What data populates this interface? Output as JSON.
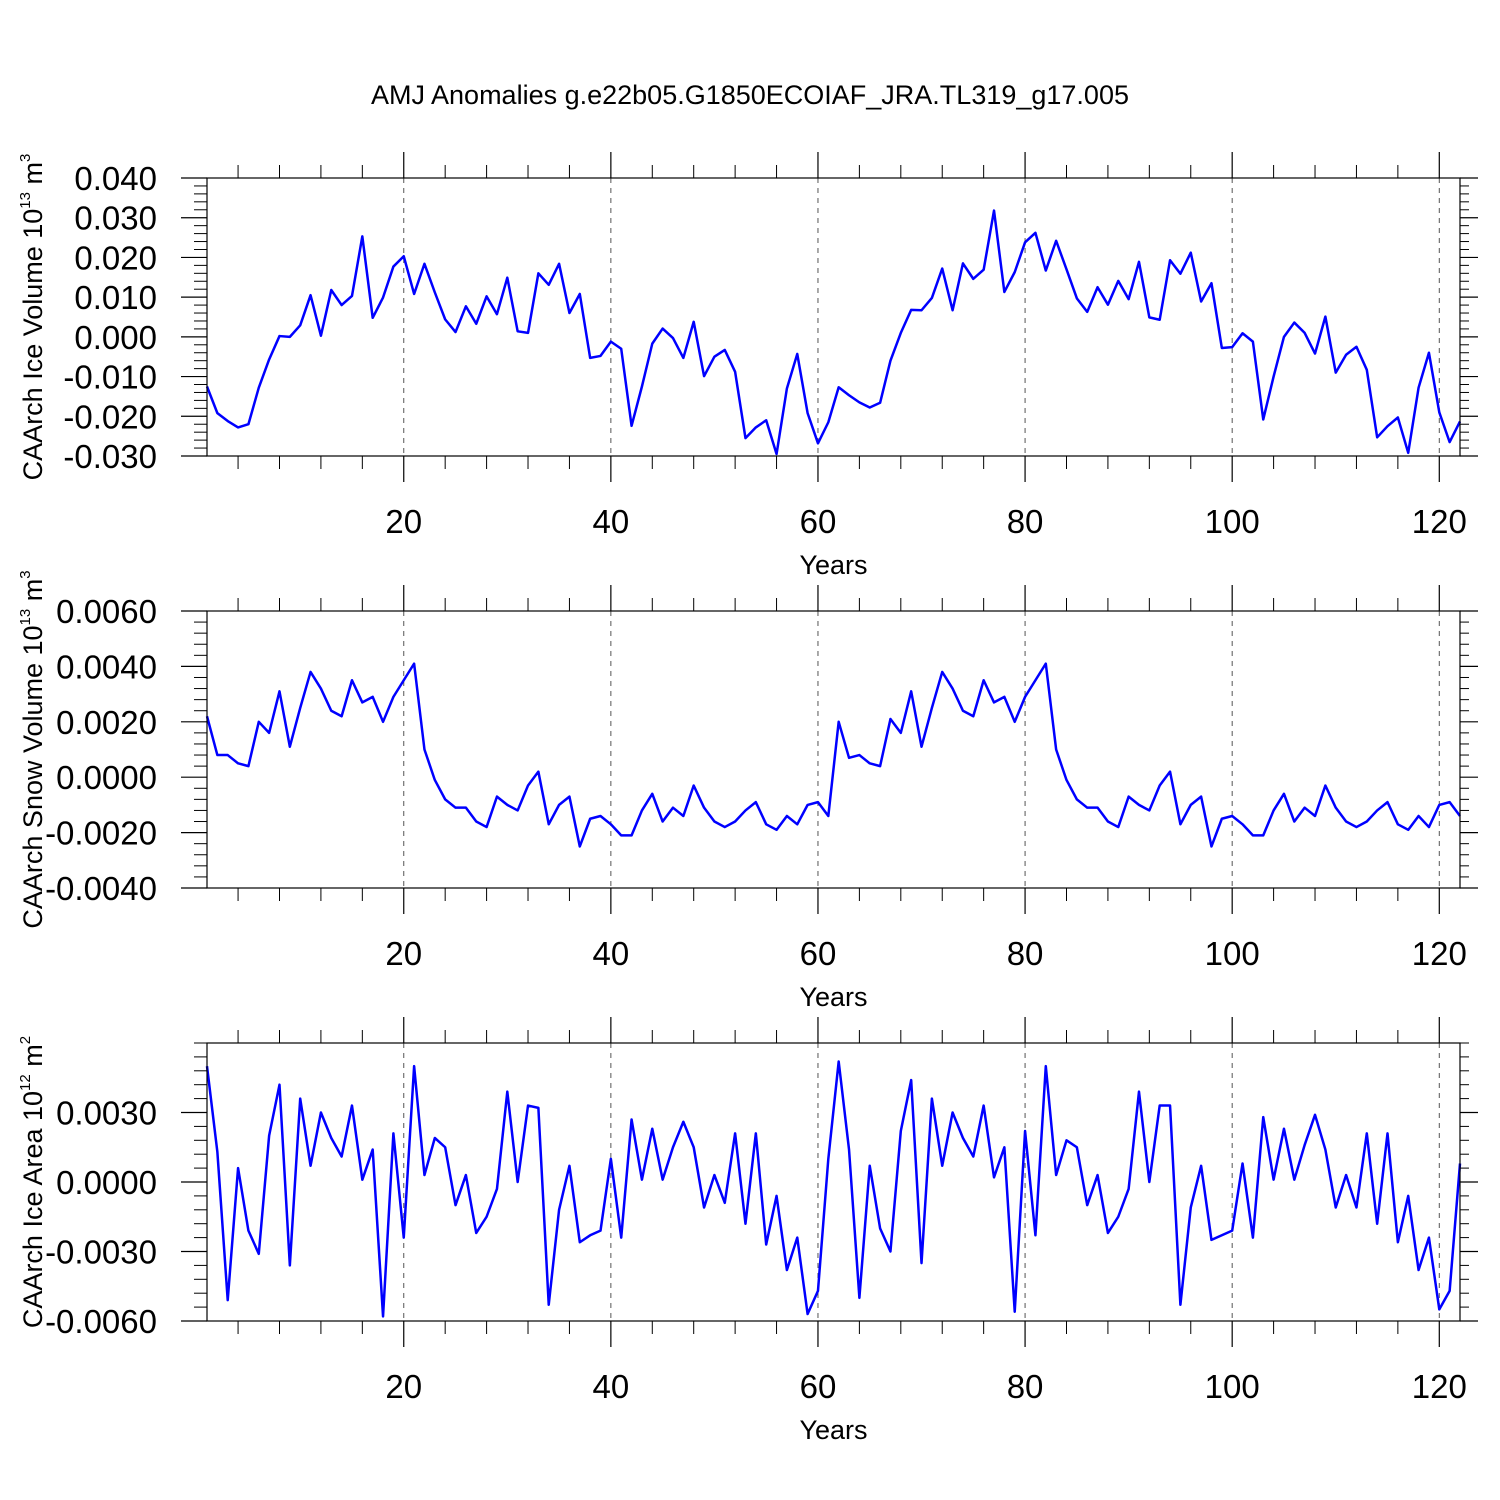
{
  "title": "AMJ Anomalies g.e22b05.G1850ECOIAF_JRA.TL319_g17.005",
  "line_color": "#0000ff",
  "chart_data": [
    {
      "type": "line",
      "name": "ice-volume",
      "xlabel": "Years",
      "ylabel": {
        "main": "CAArch Ice Volume 10",
        "exp": "13",
        "unit": " m",
        "unit_exp": "3"
      },
      "xlim": [
        1,
        122
      ],
      "ylim": [
        -0.03,
        0.04
      ],
      "xticks": [
        20,
        40,
        60,
        80,
        100,
        120
      ],
      "xtick_labels": [
        "20",
        "40",
        "60",
        "80",
        "100",
        "120"
      ],
      "yticks": [
        -0.03,
        -0.02,
        -0.01,
        0.0,
        0.01,
        0.02,
        0.03,
        0.04
      ],
      "ytick_labels": [
        "-0.030",
        "-0.020",
        "-0.010",
        "0.000",
        "0.010",
        "0.020",
        "0.030",
        "0.040"
      ],
      "y_minor": 0.002,
      "x_minor": 4,
      "x_start": 1,
      "values": [
        -0.0125,
        -0.0192,
        -0.0212,
        -0.0228,
        -0.022,
        -0.0128,
        -0.0057,
        0.0002,
        0.0,
        0.0029,
        0.0105,
        0.0003,
        0.0118,
        0.008,
        0.0103,
        0.0253,
        0.0048,
        0.0099,
        0.0177,
        0.0203,
        0.0108,
        0.0184,
        0.0112,
        0.0044,
        0.0012,
        0.0077,
        0.0033,
        0.0102,
        0.0057,
        0.0149,
        0.0014,
        0.001,
        0.016,
        0.0131,
        0.0184,
        0.006,
        0.0108,
        -0.0053,
        -0.0048,
        -0.0012,
        -0.003,
        -0.0224,
        -0.0125,
        -0.0017,
        0.0021,
        -0.0003,
        -0.0053,
        0.0038,
        -0.0099,
        -0.005,
        -0.0033,
        -0.0088,
        -0.0255,
        -0.0228,
        -0.021,
        -0.0295,
        -0.013,
        -0.0043,
        -0.0192,
        -0.0268,
        -0.0215,
        -0.0127,
        -0.0147,
        -0.0165,
        -0.0178,
        -0.0166,
        -0.006,
        0.001,
        0.0068,
        0.0067,
        0.0098,
        0.0172,
        0.0067,
        0.0185,
        0.0146,
        0.0169,
        0.0318,
        0.0113,
        0.0163,
        0.0238,
        0.0262,
        0.0167,
        0.0242,
        0.017,
        0.0097,
        0.0063,
        0.0125,
        0.0081,
        0.0141,
        0.0095,
        0.0189,
        0.0049,
        0.0043,
        0.0193,
        0.0159,
        0.0212,
        0.0089,
        0.0135,
        -0.0028,
        -0.0026,
        0.0009,
        -0.0012,
        -0.0208,
        -0.01,
        0.0,
        0.0036,
        0.001,
        -0.0042,
        0.0051,
        -0.009,
        -0.0045,
        -0.0025,
        -0.0083,
        -0.0253,
        -0.0225,
        -0.0203,
        -0.0292,
        -0.0128,
        -0.004,
        -0.019,
        -0.0265,
        -0.0213
      ]
    },
    {
      "type": "line",
      "name": "snow-volume",
      "xlabel": "Years",
      "ylabel": {
        "main": "CAArch Snow Volume 10",
        "exp": "13",
        "unit": " m",
        "unit_exp": "3"
      },
      "xlim": [
        1,
        122
      ],
      "ylim": [
        -0.004,
        0.006
      ],
      "xticks": [
        20,
        40,
        60,
        80,
        100,
        120
      ],
      "xtick_labels": [
        "20",
        "40",
        "60",
        "80",
        "100",
        "120"
      ],
      "yticks": [
        -0.004,
        -0.002,
        0.0,
        0.002,
        0.004,
        0.006
      ],
      "ytick_labels": [
        "-0.0040",
        "-0.0020",
        "0.0000",
        "0.0020",
        "0.0040",
        "0.0060"
      ],
      "y_minor": 0.0004,
      "x_minor": 4,
      "x_start": 1,
      "values": [
        0.0022,
        0.0008,
        0.0008,
        0.0005,
        0.0004,
        0.002,
        0.0016,
        0.0031,
        0.0011,
        0.0025,
        0.0038,
        0.0032,
        0.0024,
        0.0022,
        0.0035,
        0.0027,
        0.0029,
        0.002,
        0.0029,
        0.0035,
        0.0041,
        0.001,
        -0.0001,
        -0.0008,
        -0.0011,
        -0.0011,
        -0.0016,
        -0.0018,
        -0.0007,
        -0.001,
        -0.0012,
        -0.0003,
        0.0002,
        -0.0017,
        -0.001,
        -0.0007,
        -0.0025,
        -0.0015,
        -0.0014,
        -0.0017,
        -0.0021,
        -0.0021,
        -0.0012,
        -0.0006,
        -0.0016,
        -0.0011,
        -0.0014,
        -0.0003,
        -0.0011,
        -0.0016,
        -0.0018,
        -0.0016,
        -0.0012,
        -0.0009,
        -0.0017,
        -0.0019,
        -0.0014,
        -0.0017,
        -0.001,
        -0.0009,
        -0.0014,
        0.002,
        0.0007,
        0.0008,
        0.0005,
        0.0004,
        0.0021,
        0.0016,
        0.0031,
        0.0011,
        0.0025,
        0.0038,
        0.0032,
        0.0024,
        0.0022,
        0.0035,
        0.0027,
        0.0029,
        0.002,
        0.0029,
        0.0035,
        0.0041,
        0.001,
        -0.0001,
        -0.0008,
        -0.0011,
        -0.0011,
        -0.0016,
        -0.0018,
        -0.0007,
        -0.001,
        -0.0012,
        -0.0003,
        0.0002,
        -0.0017,
        -0.001,
        -0.0007,
        -0.0025,
        -0.0015,
        -0.0014,
        -0.0017,
        -0.0021,
        -0.0021,
        -0.0012,
        -0.0006,
        -0.0016,
        -0.0011,
        -0.0014,
        -0.0003,
        -0.0011,
        -0.0016,
        -0.0018,
        -0.0016,
        -0.0012,
        -0.0009,
        -0.0017,
        -0.0019,
        -0.0014,
        -0.0018,
        -0.001,
        -0.0009,
        -0.0014
      ]
    },
    {
      "type": "line",
      "name": "ice-area",
      "xlabel": "Years",
      "ylabel": {
        "main": "CAArch Ice Area 10",
        "exp": "12",
        "unit": " m",
        "unit_exp": "2"
      },
      "xlim": [
        1,
        122
      ],
      "ylim": [
        -0.006,
        0.006
      ],
      "xticks": [
        20,
        40,
        60,
        80,
        100,
        120
      ],
      "xtick_labels": [
        "20",
        "40",
        "60",
        "80",
        "100",
        "120"
      ],
      "yticks": [
        -0.006,
        -0.003,
        0.0,
        0.003
      ],
      "ytick_labels": [
        "-0.0060",
        "-0.0030",
        "0.0000",
        "0.0030"
      ],
      "y_minor": 0.0006,
      "x_minor": 4,
      "x_start": 1,
      "values": [
        0.005,
        0.0013,
        -0.0051,
        0.0006,
        -0.0021,
        -0.0031,
        0.002,
        0.0042,
        -0.0036,
        0.0036,
        0.0007,
        0.003,
        0.0019,
        0.0011,
        0.0033,
        0.0001,
        0.0014,
        -0.0058,
        0.0021,
        -0.0024,
        0.005,
        0.0003,
        0.0019,
        0.0015,
        -0.001,
        0.0003,
        -0.0022,
        -0.0015,
        -0.0003,
        0.0039,
        0.0,
        0.0033,
        0.0032,
        -0.0053,
        -0.0012,
        0.0007,
        -0.0026,
        -0.0023,
        -0.0021,
        0.001,
        -0.0024,
        0.0027,
        0.0001,
        0.0023,
        0.0001,
        0.0015,
        0.0026,
        0.0015,
        -0.0011,
        0.0003,
        -0.0009,
        0.0021,
        -0.0018,
        0.0021,
        -0.0027,
        -0.0006,
        -0.0038,
        -0.0024,
        -0.0057,
        -0.0047,
        0.001,
        0.0052,
        0.0014,
        -0.005,
        0.0007,
        -0.002,
        -0.003,
        0.0022,
        0.0044,
        -0.0035,
        0.0036,
        0.0007,
        0.003,
        0.0019,
        0.0011,
        0.0033,
        0.0002,
        0.0015,
        -0.0056,
        0.0022,
        -0.0023,
        0.005,
        0.0003,
        0.0018,
        0.0015,
        -0.001,
        0.0003,
        -0.0022,
        -0.0015,
        -0.0003,
        0.0039,
        0.0,
        0.0033,
        0.0033,
        -0.0053,
        -0.0011,
        0.0007,
        -0.0025,
        -0.0023,
        -0.0021,
        0.0008,
        -0.0024,
        0.0028,
        0.0001,
        0.0023,
        0.0001,
        0.0016,
        0.0029,
        0.0014,
        -0.0011,
        0.0003,
        -0.0011,
        0.0021,
        -0.0018,
        0.0021,
        -0.0026,
        -0.0006,
        -0.0038,
        -0.0024,
        -0.0055,
        -0.0047,
        0.0008
      ]
    }
  ]
}
